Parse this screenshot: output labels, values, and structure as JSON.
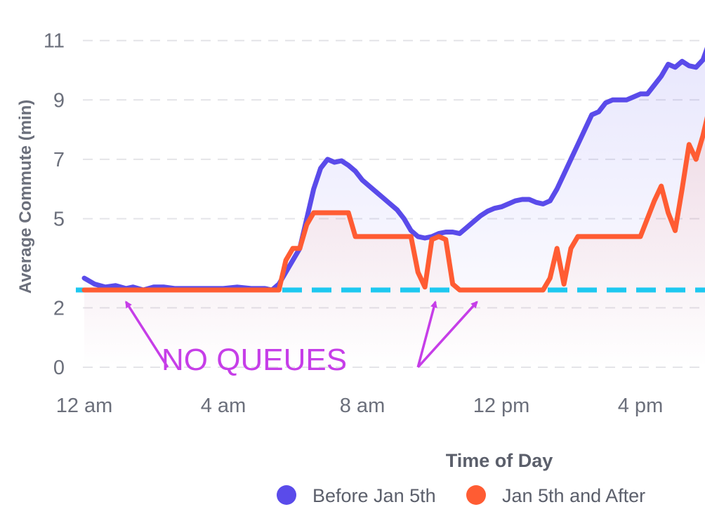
{
  "chart_data": {
    "type": "line",
    "title": "",
    "xlabel": "Time of Day",
    "ylabel": "Average Commute (min)",
    "x_unit": "hour",
    "xlim": [
      0,
      17.7
    ],
    "ylim": [
      0,
      11.5
    ],
    "x_ticks": [
      {
        "value": 0,
        "label": "12 am"
      },
      {
        "value": 4,
        "label": "4 am"
      },
      {
        "value": 8,
        "label": "8 am"
      },
      {
        "value": 12,
        "label": "12 pm"
      },
      {
        "value": 16,
        "label": "4 pm"
      }
    ],
    "y_ticks": [
      {
        "value": 0,
        "label": "0"
      },
      {
        "value": 2,
        "label": "2"
      },
      {
        "value": 5,
        "label": "5"
      },
      {
        "value": 7,
        "label": "7"
      },
      {
        "value": 9,
        "label": "9"
      },
      {
        "value": 11,
        "label": "11"
      }
    ],
    "grid": true,
    "legend_position": "bottom",
    "series": [
      {
        "name": "Before Jan 5th",
        "color": "#5a4bea",
        "points": [
          [
            0,
            3.0
          ],
          [
            0.3,
            2.8
          ],
          [
            0.6,
            2.7
          ],
          [
            0.9,
            2.75
          ],
          [
            1.2,
            2.65
          ],
          [
            1.4,
            2.7
          ],
          [
            1.7,
            2.6
          ],
          [
            2.0,
            2.7
          ],
          [
            2.3,
            2.7
          ],
          [
            2.6,
            2.65
          ],
          [
            3.0,
            2.65
          ],
          [
            3.5,
            2.65
          ],
          [
            4.0,
            2.65
          ],
          [
            4.4,
            2.7
          ],
          [
            4.8,
            2.65
          ],
          [
            5.2,
            2.65
          ],
          [
            5.4,
            2.6
          ],
          [
            5.6,
            2.8
          ],
          [
            5.8,
            3.2
          ],
          [
            6.0,
            3.6
          ],
          [
            6.2,
            4.0
          ],
          [
            6.4,
            5.0
          ],
          [
            6.6,
            6.0
          ],
          [
            6.8,
            6.7
          ],
          [
            7.0,
            7.0
          ],
          [
            7.2,
            6.9
          ],
          [
            7.4,
            6.95
          ],
          [
            7.6,
            6.8
          ],
          [
            7.8,
            6.6
          ],
          [
            8.0,
            6.3
          ],
          [
            8.2,
            6.1
          ],
          [
            8.4,
            5.9
          ],
          [
            8.6,
            5.7
          ],
          [
            8.8,
            5.5
          ],
          [
            9.0,
            5.3
          ],
          [
            9.2,
            5.0
          ],
          [
            9.4,
            4.6
          ],
          [
            9.6,
            4.4
          ],
          [
            9.8,
            4.35
          ],
          [
            10.0,
            4.4
          ],
          [
            10.2,
            4.5
          ],
          [
            10.4,
            4.55
          ],
          [
            10.6,
            4.55
          ],
          [
            10.8,
            4.5
          ],
          [
            11.0,
            4.7
          ],
          [
            11.2,
            4.9
          ],
          [
            11.4,
            5.1
          ],
          [
            11.6,
            5.25
          ],
          [
            11.8,
            5.35
          ],
          [
            12.0,
            5.4
          ],
          [
            12.2,
            5.5
          ],
          [
            12.4,
            5.6
          ],
          [
            12.6,
            5.65
          ],
          [
            12.8,
            5.65
          ],
          [
            13.0,
            5.55
          ],
          [
            13.2,
            5.5
          ],
          [
            13.4,
            5.6
          ],
          [
            13.6,
            6.0
          ],
          [
            13.8,
            6.5
          ],
          [
            14.0,
            7.0
          ],
          [
            14.2,
            7.5
          ],
          [
            14.4,
            8.0
          ],
          [
            14.6,
            8.5
          ],
          [
            14.8,
            8.6
          ],
          [
            15.0,
            8.9
          ],
          [
            15.2,
            9.0
          ],
          [
            15.4,
            9.0
          ],
          [
            15.6,
            9.0
          ],
          [
            15.8,
            9.1
          ],
          [
            16.0,
            9.2
          ],
          [
            16.2,
            9.2
          ],
          [
            16.4,
            9.5
          ],
          [
            16.6,
            9.8
          ],
          [
            16.8,
            10.2
          ],
          [
            17.0,
            10.1
          ],
          [
            17.2,
            10.3
          ],
          [
            17.4,
            10.15
          ],
          [
            17.6,
            10.1
          ],
          [
            17.8,
            10.35
          ],
          [
            18.0,
            11.0
          ]
        ]
      },
      {
        "name": "Jan 5th and After",
        "color": "#ff5c33",
        "points": [
          [
            0,
            2.6
          ],
          [
            1.0,
            2.6
          ],
          [
            2.0,
            2.6
          ],
          [
            3.0,
            2.6
          ],
          [
            4.0,
            2.6
          ],
          [
            5.0,
            2.6
          ],
          [
            5.6,
            2.6
          ],
          [
            5.8,
            3.6
          ],
          [
            6.0,
            4.0
          ],
          [
            6.2,
            4.0
          ],
          [
            6.4,
            4.8
          ],
          [
            6.6,
            5.2
          ],
          [
            6.8,
            5.2
          ],
          [
            7.0,
            5.2
          ],
          [
            7.2,
            5.2
          ],
          [
            7.4,
            5.2
          ],
          [
            7.6,
            5.2
          ],
          [
            7.8,
            4.4
          ],
          [
            8.0,
            4.4
          ],
          [
            8.4,
            4.4
          ],
          [
            8.8,
            4.4
          ],
          [
            9.2,
            4.4
          ],
          [
            9.4,
            4.4
          ],
          [
            9.6,
            3.2
          ],
          [
            9.8,
            2.7
          ],
          [
            10.0,
            4.3
          ],
          [
            10.2,
            4.4
          ],
          [
            10.4,
            4.3
          ],
          [
            10.6,
            2.8
          ],
          [
            10.8,
            2.6
          ],
          [
            11.2,
            2.6
          ],
          [
            11.6,
            2.6
          ],
          [
            12.0,
            2.6
          ],
          [
            12.4,
            2.6
          ],
          [
            12.8,
            2.6
          ],
          [
            13.2,
            2.6
          ],
          [
            13.4,
            3.0
          ],
          [
            13.6,
            4.0
          ],
          [
            13.8,
            2.8
          ],
          [
            14.0,
            4.0
          ],
          [
            14.2,
            4.4
          ],
          [
            14.6,
            4.4
          ],
          [
            15.0,
            4.4
          ],
          [
            15.4,
            4.4
          ],
          [
            15.8,
            4.4
          ],
          [
            16.0,
            4.4
          ],
          [
            16.2,
            5.0
          ],
          [
            16.4,
            5.6
          ],
          [
            16.6,
            6.1
          ],
          [
            16.8,
            5.2
          ],
          [
            17.0,
            4.6
          ],
          [
            17.2,
            6.0
          ],
          [
            17.4,
            7.5
          ],
          [
            17.6,
            7.0
          ],
          [
            17.8,
            7.8
          ],
          [
            18.0,
            8.8
          ]
        ]
      }
    ],
    "reference_line": {
      "value": 2.6,
      "color": "#1ec8f0",
      "style": "dashed"
    },
    "annotations": [
      {
        "text": "NO QUEUES",
        "color": "#c63ee8",
        "arrows": [
          {
            "from": [
              2.4,
              0.0
            ],
            "to": [
              1.2,
              2.2
            ]
          },
          {
            "from": [
              9.6,
              0.0
            ],
            "to": [
              10.1,
              2.2
            ]
          },
          {
            "from": [
              9.6,
              0.0
            ],
            "to": [
              11.3,
              2.2
            ]
          }
        ]
      }
    ]
  }
}
